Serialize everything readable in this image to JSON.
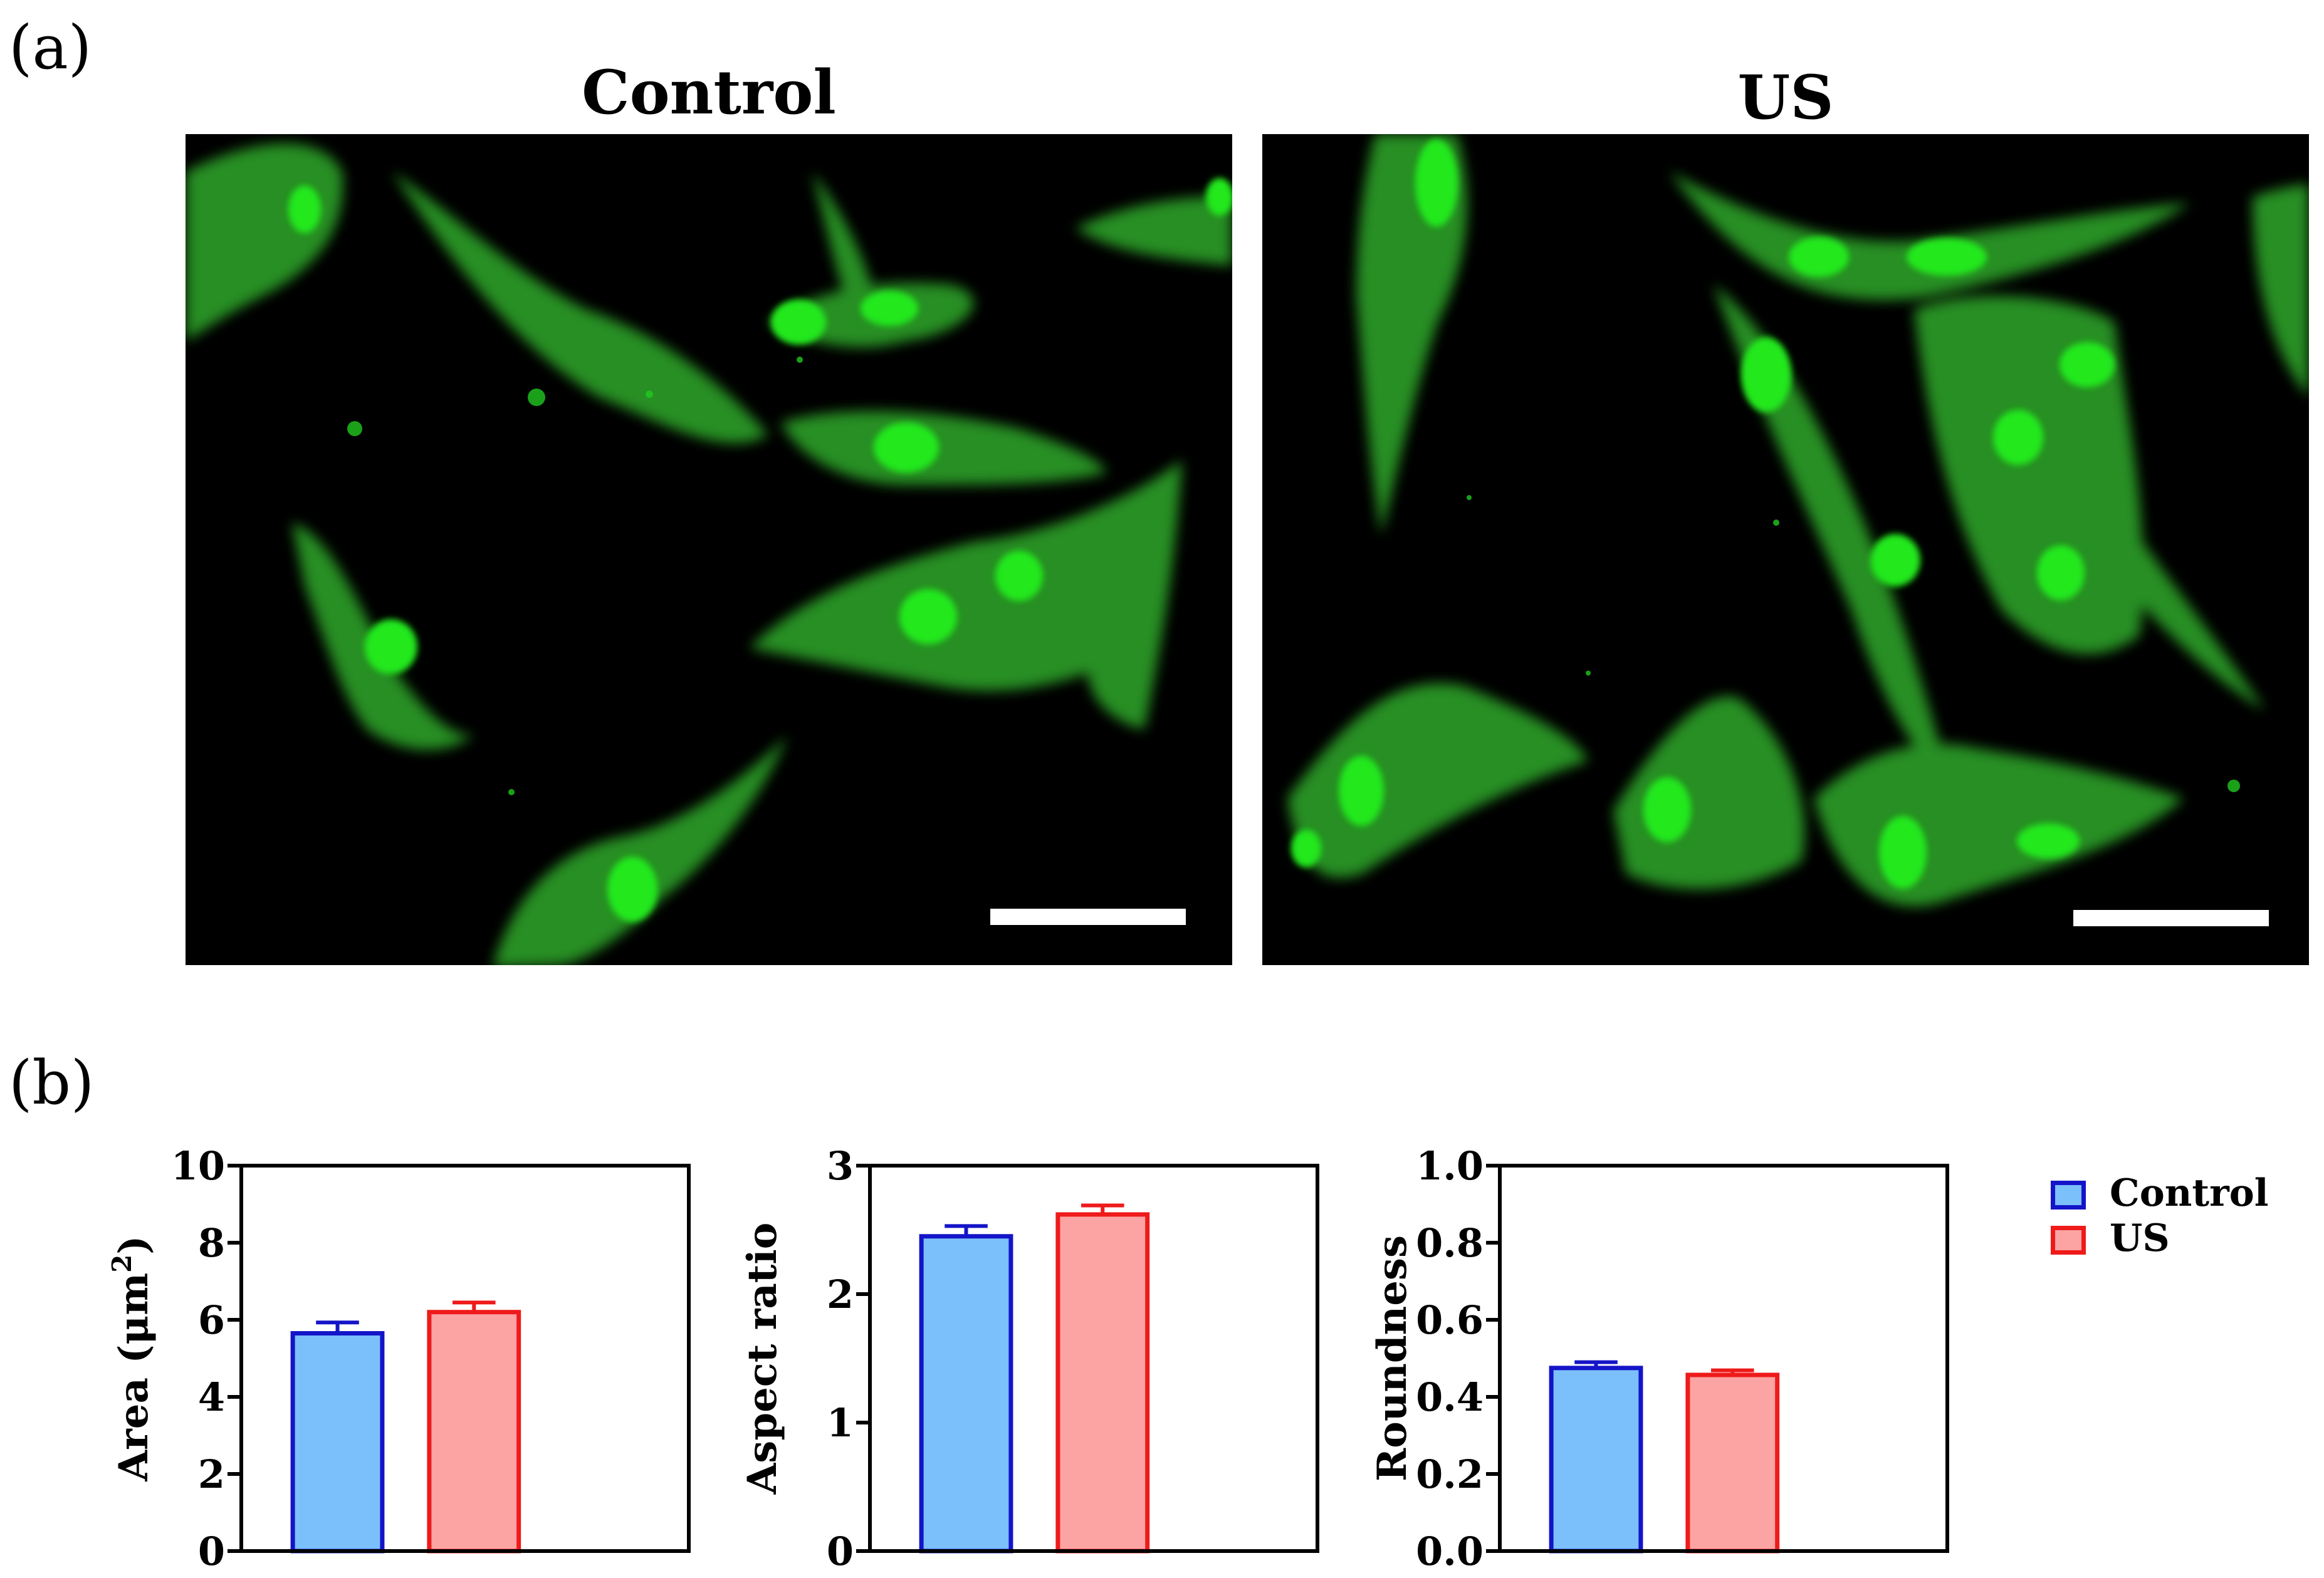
{
  "panel_labels": {
    "a": "(a)",
    "b": "(b)"
  },
  "images": [
    {
      "title": "Control"
    },
    {
      "title": "US"
    }
  ],
  "colors": {
    "control_fill": "#7bbffb",
    "control_edge": "#1414c8",
    "us_fill": "#fca3a3",
    "us_edge": "#ef1a1a",
    "cell": "#2ea82a",
    "nucleus": "#22e81f"
  },
  "legend": [
    {
      "label": "Control",
      "fill": "#7bbffb",
      "edge": "#1414c8"
    },
    {
      "label": "US",
      "fill": "#fca3a3",
      "edge": "#ef1a1a"
    }
  ],
  "chart_data": [
    {
      "type": "bar",
      "ylabel_html": "Area (μm²)",
      "ylabel": "Area (μm",
      "ylabel_sup": "2",
      "ylabel_end": ")",
      "ylim": [
        0,
        10
      ],
      "yticks": [
        "0",
        "2",
        "4",
        "6",
        "8",
        "10"
      ],
      "categories": [
        "Control",
        "US"
      ],
      "values": [
        5.65,
        6.2
      ],
      "errors": [
        0.28,
        0.25
      ],
      "grid": false
    },
    {
      "type": "bar",
      "ylabel": "Aspect ratio",
      "ylim": [
        0,
        3
      ],
      "yticks": [
        "0",
        "1",
        "2",
        "3"
      ],
      "categories": [
        "Control",
        "US"
      ],
      "values": [
        2.45,
        2.62
      ],
      "errors": [
        0.08,
        0.07
      ],
      "grid": false
    },
    {
      "type": "bar",
      "ylabel": "Roundness",
      "ylim": [
        0,
        1.0
      ],
      "yticks": [
        "0.0",
        "0.2",
        "0.4",
        "0.6",
        "0.8",
        "1.0"
      ],
      "categories": [
        "Control",
        "US"
      ],
      "values": [
        0.475,
        0.457
      ],
      "errors": [
        0.015,
        0.012
      ],
      "grid": false
    }
  ]
}
